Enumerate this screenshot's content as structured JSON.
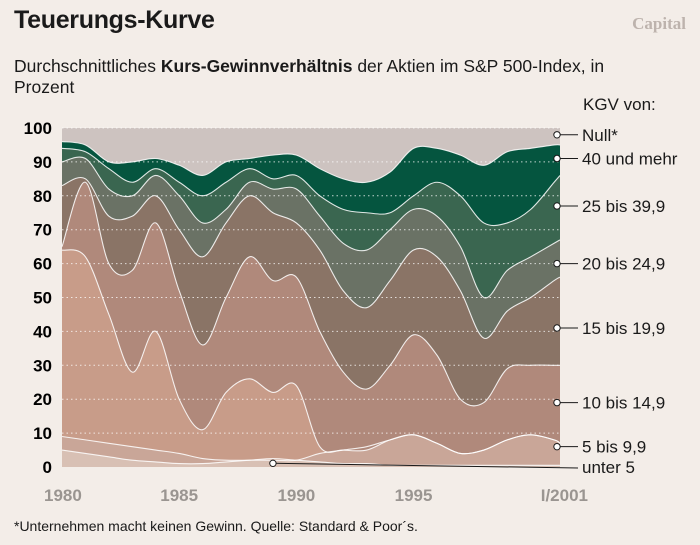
{
  "header": {
    "title": "Teuerungs-Kurve",
    "brand": "Capital",
    "subtitle_pre": "Durchschnittliches ",
    "subtitle_bold": "Kurs-Gewinnverhältnis",
    "subtitle_post": " der Aktien im S&P 500-Index, in Prozent"
  },
  "footnote": "*Unternehmen macht keinen Gewinn. Quelle: Standard & Poor´s.",
  "legend_heading": "KGV von:",
  "colors": {
    "background": "#f3ede8",
    "plot_top": "#cdc3c0"
  },
  "chart_data": {
    "type": "area",
    "stacked": true,
    "xlabel": "",
    "ylabel": "",
    "ylim": [
      0,
      100
    ],
    "y_ticks": [
      0,
      10,
      20,
      30,
      40,
      50,
      60,
      70,
      80,
      90,
      100
    ],
    "x_ticks": [
      "1980",
      "1985",
      "1990",
      "1995",
      "I/2001"
    ],
    "x_tick_values": [
      1980,
      1985,
      1990,
      1995,
      2001
    ],
    "xlim": [
      1980,
      2001.25
    ],
    "x": [
      1980,
      1981,
      1982,
      1983,
      1984,
      1985,
      1986,
      1987,
      1988,
      1989,
      1990,
      1991,
      1992,
      1993,
      1994,
      1995,
      1996,
      1997,
      1998,
      1999,
      2000,
      2001,
      2001.25
    ],
    "boundaries": [
      {
        "name": "unter 5",
        "values": [
          5,
          4,
          3,
          2,
          1.5,
          1,
          1,
          1.5,
          2,
          2.5,
          2,
          1.5,
          1,
          1,
          0.5,
          0.5,
          0.5,
          0.5,
          0.5,
          0.5,
          0.5,
          0.5,
          0.5
        ]
      },
      {
        "name": "5 bis 9,9",
        "values": [
          9,
          8,
          7,
          6,
          5,
          4,
          2.5,
          2,
          2,
          2,
          2,
          4,
          5,
          6,
          8,
          9.5,
          7,
          4,
          5,
          8,
          9.5,
          8,
          7
        ]
      },
      {
        "name": "10 bis 14,9",
        "values": [
          64,
          62,
          45,
          28,
          40,
          20,
          11,
          22,
          26,
          22,
          24,
          6,
          5,
          5,
          8,
          9.5,
          7,
          4,
          5,
          8,
          9.5,
          8,
          7
        ]
      },
      {
        "name": "15 bis 19,9",
        "values": [
          65,
          84,
          60,
          58,
          72,
          52,
          36,
          50,
          62,
          55,
          56,
          40,
          28,
          23,
          30,
          39,
          33,
          20,
          19,
          29,
          30,
          30,
          30
        ]
      },
      {
        "name": "20 bis 24,9",
        "values": [
          83,
          85,
          74,
          74,
          80,
          70,
          62,
          72,
          80,
          75,
          72,
          64,
          52,
          47,
          55,
          64,
          62,
          52,
          38,
          46,
          50,
          55,
          56
        ]
      },
      {
        "name": "25 bis 39,9",
        "values": [
          90,
          91,
          82,
          80,
          86,
          80,
          72,
          76,
          84,
          82,
          82,
          74,
          66,
          64,
          70,
          76,
          74,
          65,
          50,
          58,
          62,
          66,
          67
        ]
      },
      {
        "name": "40 und mehr",
        "values": [
          94,
          93,
          88,
          84,
          88,
          84,
          80,
          84,
          88,
          85,
          86,
          80,
          76,
          75,
          75,
          80,
          84,
          80,
          72,
          72,
          76,
          84,
          86
        ]
      },
      {
        "name": "Null*",
        "values": [
          96,
          95,
          90,
          90,
          91,
          89,
          86,
          90,
          91,
          92,
          92,
          88,
          85,
          84,
          87,
          94,
          94,
          92,
          89,
          93,
          94,
          95,
          95
        ]
      }
    ],
    "series_labels": [
      {
        "text": "Null*",
        "at": 98
      },
      {
        "text": "40 und mehr",
        "at": 91
      },
      {
        "text": "25 bis 39,9",
        "at": 77
      },
      {
        "text": "20 bis 24,9",
        "at": 60
      },
      {
        "text": "15 bis 19,9",
        "at": 41
      },
      {
        "text": "10 bis 14,9",
        "at": 19
      },
      {
        "text": "5 bis 9,9",
        "at": 6
      },
      {
        "text": "unter 5",
        "at": 0
      }
    ],
    "layer_colors": [
      "#d8c0b4",
      "#c9a698",
      "#c89c89",
      "#b0897b",
      "#8a7466",
      "#6a7265",
      "#3a6650",
      "#05553f"
    ],
    "grid": "dotted-horizontal"
  }
}
